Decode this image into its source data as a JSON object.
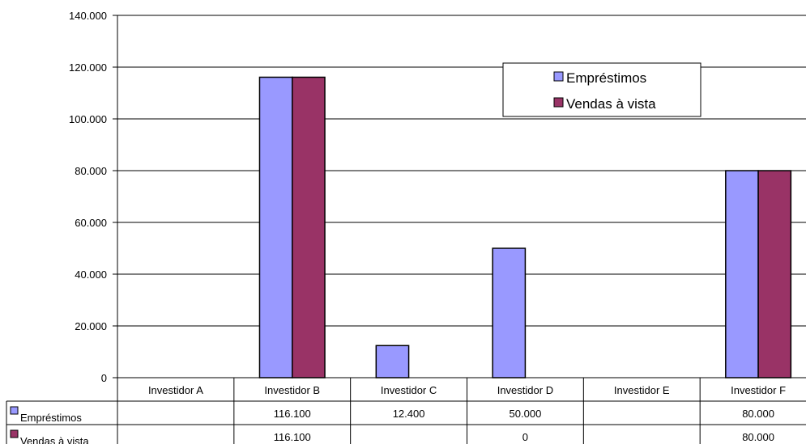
{
  "chart_data": {
    "type": "bar",
    "categories": [
      "Investidor A",
      "Investidor B",
      "Investidor C",
      "Investidor D",
      "Investidor E",
      "Investidor F"
    ],
    "series": [
      {
        "name": "Empréstimos",
        "values": [
          null,
          116100,
          12400,
          50000,
          null,
          80000
        ],
        "labels": [
          "",
          "116.100",
          "12.400",
          "50.000",
          "",
          "80.000"
        ],
        "color": "#9999FF"
      },
      {
        "name": "Vendas à vista",
        "values": [
          null,
          116100,
          null,
          0,
          null,
          80000
        ],
        "labels": [
          "",
          "116.100",
          "",
          "0",
          "",
          "80.000"
        ],
        "color": "#993366"
      }
    ],
    "ylim": [
      0,
      140000
    ],
    "y_ticks": [
      0,
      20000,
      40000,
      60000,
      80000,
      100000,
      120000,
      140000
    ],
    "y_tick_labels": [
      "0",
      "20.000",
      "40.000",
      "60.000",
      "80.000",
      "100.000",
      "120.000",
      "140.000"
    ],
    "grid": true,
    "legend": {
      "position": "top-right",
      "entries": [
        "Empréstimos",
        "Vendas à vista"
      ]
    },
    "data_table": true
  }
}
